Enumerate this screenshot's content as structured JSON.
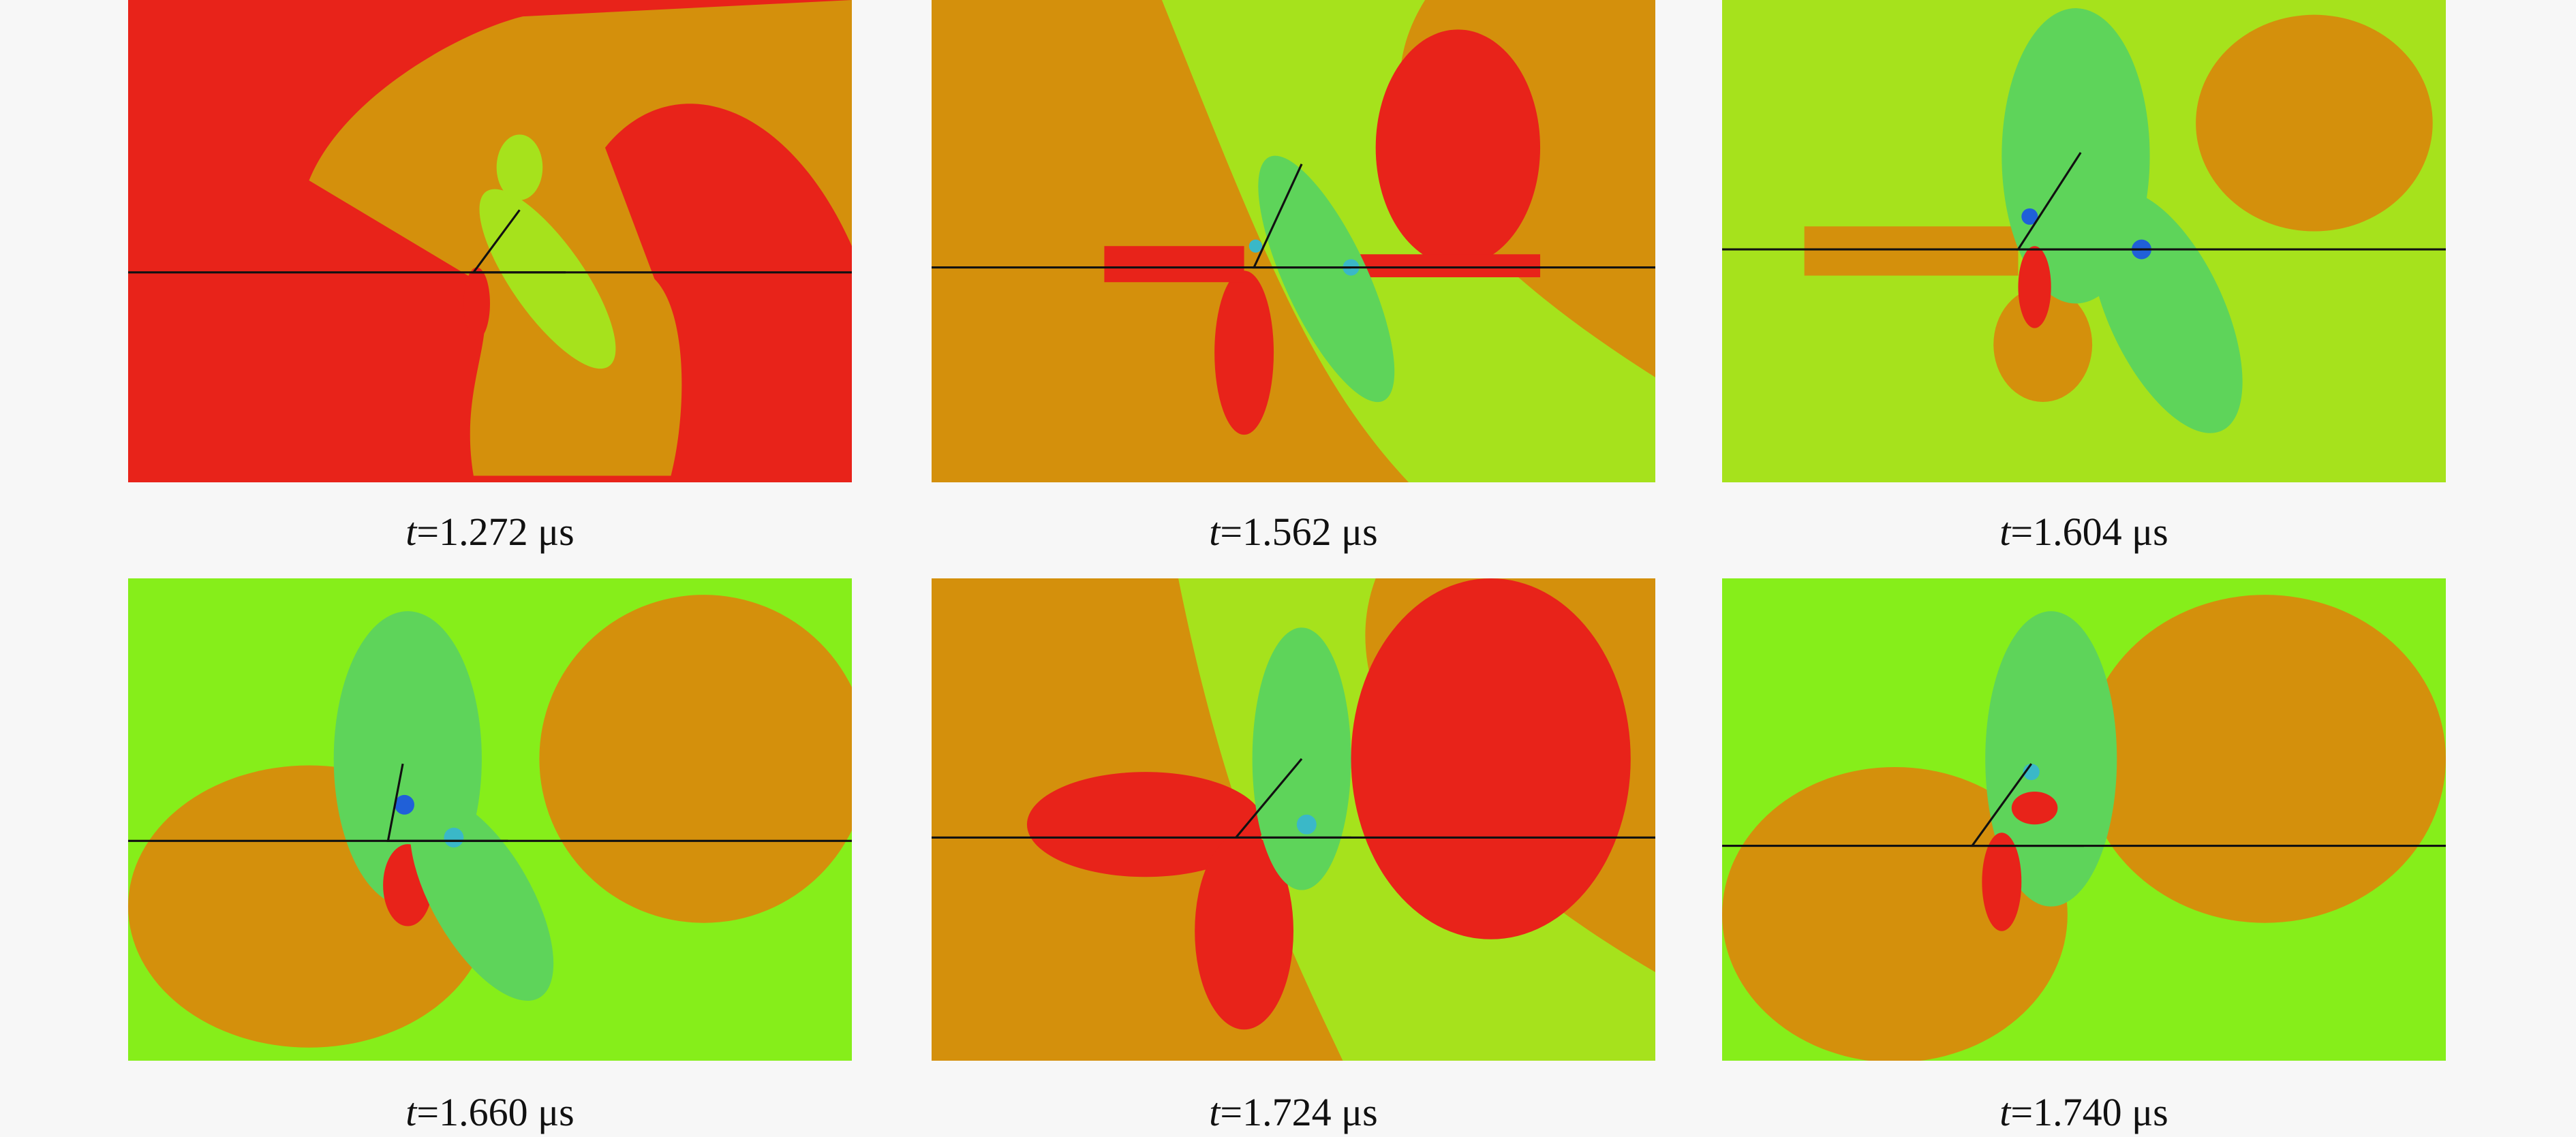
{
  "figure": {
    "panels": [
      {
        "caption": {
          "variable": "t",
          "text": "=1.272 μs"
        }
      },
      {
        "caption": {
          "variable": "t",
          "text": "=1.562 μs"
        }
      },
      {
        "caption": {
          "variable": "t",
          "text": "=1.604 μs"
        }
      },
      {
        "caption": {
          "variable": "t",
          "text": "=1.660 μs"
        }
      },
      {
        "caption": {
          "variable": "t",
          "text": "=1.724 μs"
        }
      },
      {
        "caption": {
          "variable": "t",
          "text": "=1.740 μs"
        }
      }
    ]
  }
}
